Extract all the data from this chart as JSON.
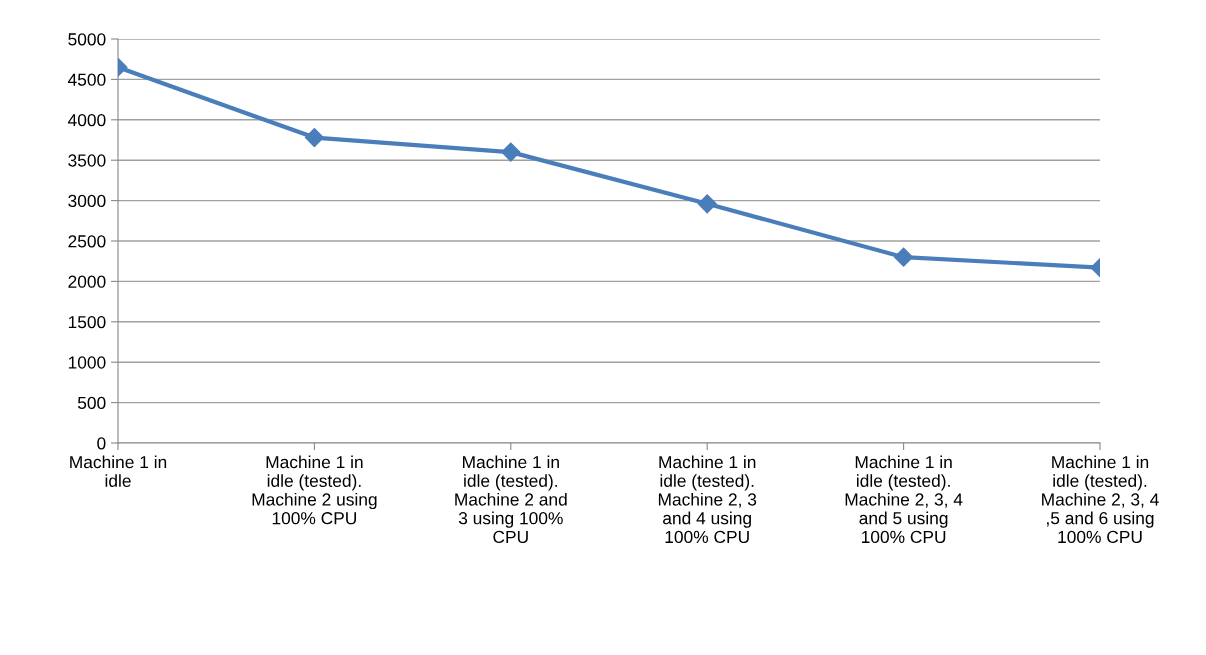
{
  "chart_data": {
    "type": "line",
    "categories": [
      "Machine 1 in\nidle",
      "Machine 1 in\nidle (tested).\nMachine 2 using\n100% CPU",
      "Machine 1 in\nidle (tested).\nMachine 2 and\n3 using 100%\nCPU",
      "Machine 1 in\nidle (tested).\nMachine 2, 3\nand 4 using\n100% CPU",
      "Machine 1 in\nidle (tested).\nMachine 2, 3, 4\nand 5 using\n100% CPU",
      "Machine 1 in\nidle (tested).\nMachine 2, 3, 4\n,5 and 6 using\n100% CPU"
    ],
    "series": [
      {
        "color": "#4a7ebb",
        "values": [
          4650,
          3780,
          3600,
          2960,
          2300,
          2170
        ]
      }
    ],
    "ylim": [
      0,
      5000
    ],
    "yticks": [
      0,
      500,
      1000,
      1500,
      2000,
      2500,
      3000,
      3500,
      4000,
      4500,
      5000
    ],
    "grid": "y",
    "legend": false,
    "marker": "diamond",
    "line_style": "solid"
  }
}
